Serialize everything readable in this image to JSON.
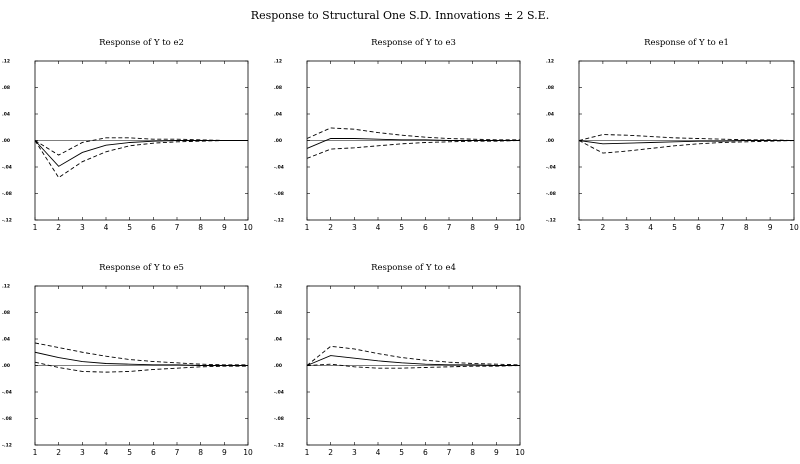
{
  "figure": {
    "title": "Response to Structural One S.D. Innovations ± 2 S.E."
  },
  "chart_data": [
    {
      "type": "line",
      "title": "Response of Y to e2",
      "x": [
        1,
        2,
        3,
        4,
        5,
        6,
        7,
        8,
        9,
        10
      ],
      "ylim": [
        -0.12,
        0.12
      ],
      "yticks": [
        ".12",
        ".08",
        ".04",
        ".00",
        "-.04",
        "-.08",
        "-.12"
      ],
      "yticks_values": [
        0.12,
        0.08,
        0.04,
        0.0,
        -0.04,
        -0.08,
        -0.12
      ],
      "series": [
        {
          "style": "solid",
          "values": [
            0.0,
            -0.039,
            -0.018,
            -0.007,
            -0.003,
            -0.001,
            0.0,
            0.0,
            0.0,
            0.0
          ]
        },
        {
          "style": "dashed",
          "values": [
            0.0,
            -0.056,
            -0.032,
            -0.017,
            -0.008,
            -0.004,
            -0.002,
            -0.001,
            0.0,
            0.0
          ]
        },
        {
          "style": "dashed",
          "values": [
            0.0,
            -0.022,
            -0.003,
            0.004,
            0.004,
            0.002,
            0.002,
            0.001,
            0.0,
            0.0
          ]
        }
      ]
    },
    {
      "type": "line",
      "title": "Response of Y to e3",
      "x": [
        1,
        2,
        3,
        4,
        5,
        6,
        7,
        8,
        9,
        10
      ],
      "ylim": [
        -0.12,
        0.12
      ],
      "yticks": [
        ".12",
        ".08",
        ".04",
        ".00",
        "-.04",
        "-.08",
        "-.12"
      ],
      "yticks_values": [
        0.12,
        0.08,
        0.04,
        0.0,
        -0.04,
        -0.08,
        -0.12
      ],
      "series": [
        {
          "style": "solid",
          "values": [
            -0.012,
            0.003,
            0.003,
            0.002,
            0.001,
            0.001,
            0.0,
            0.0,
            0.0,
            0.0
          ]
        },
        {
          "style": "dashed",
          "values": [
            0.003,
            0.019,
            0.017,
            0.012,
            0.008,
            0.005,
            0.003,
            0.002,
            0.001,
            0.001
          ]
        },
        {
          "style": "dashed",
          "values": [
            -0.027,
            -0.013,
            -0.011,
            -0.008,
            -0.005,
            -0.003,
            -0.002,
            -0.001,
            -0.001,
            0.0
          ]
        }
      ]
    },
    {
      "type": "line",
      "title": "Response of Y to e1",
      "x": [
        1,
        2,
        3,
        4,
        5,
        6,
        7,
        8,
        9,
        10
      ],
      "ylim": [
        -0.12,
        0.12
      ],
      "yticks": [
        ".12",
        ".08",
        ".04",
        ".00",
        "-.04",
        "-.08",
        "-.12"
      ],
      "yticks_values": [
        0.12,
        0.08,
        0.04,
        0.0,
        -0.04,
        -0.08,
        -0.12
      ],
      "series": [
        {
          "style": "solid",
          "values": [
            0.0,
            -0.005,
            -0.004,
            -0.003,
            -0.002,
            -0.001,
            -0.001,
            0.0,
            0.0,
            0.0
          ]
        },
        {
          "style": "dashed",
          "values": [
            0.0,
            0.009,
            0.008,
            0.006,
            0.004,
            0.003,
            0.002,
            0.001,
            0.001,
            0.0
          ]
        },
        {
          "style": "dashed",
          "values": [
            0.0,
            -0.019,
            -0.016,
            -0.012,
            -0.008,
            -0.005,
            -0.003,
            -0.002,
            -0.001,
            0.0
          ]
        }
      ]
    },
    {
      "type": "line",
      "title": "Response of Y to e5",
      "x": [
        1,
        2,
        3,
        4,
        5,
        6,
        7,
        8,
        9,
        10
      ],
      "ylim": [
        -0.12,
        0.12
      ],
      "yticks": [
        ".12",
        ".08",
        ".04",
        ".00",
        "-.04",
        "-.08",
        "-.12"
      ],
      "yticks_values": [
        0.12,
        0.08,
        0.04,
        0.0,
        -0.04,
        -0.08,
        -0.12
      ],
      "series": [
        {
          "style": "solid",
          "values": [
            0.02,
            0.012,
            0.006,
            0.003,
            0.002,
            0.001,
            0.001,
            0.0,
            0.0,
            0.0
          ]
        },
        {
          "style": "dashed",
          "values": [
            0.034,
            0.027,
            0.02,
            0.014,
            0.009,
            0.006,
            0.004,
            0.002,
            0.001,
            0.001
          ]
        },
        {
          "style": "dashed",
          "values": [
            0.005,
            -0.003,
            -0.009,
            -0.01,
            -0.009,
            -0.006,
            -0.004,
            -0.002,
            -0.001,
            -0.001
          ]
        }
      ]
    },
    {
      "type": "line",
      "title": "Response of Y to e4",
      "x": [
        1,
        2,
        3,
        4,
        5,
        6,
        7,
        8,
        9,
        10
      ],
      "ylim": [
        -0.12,
        0.12
      ],
      "yticks": [
        ".12",
        ".08",
        ".04",
        ".00",
        "-.04",
        "-.08",
        "-.12"
      ],
      "yticks_values": [
        0.12,
        0.08,
        0.04,
        0.0,
        -0.04,
        -0.08,
        -0.12
      ],
      "series": [
        {
          "style": "solid",
          "values": [
            0.0,
            0.015,
            0.011,
            0.007,
            0.004,
            0.002,
            0.001,
            0.001,
            0.0,
            0.0
          ]
        },
        {
          "style": "dashed",
          "values": [
            0.0,
            0.029,
            0.025,
            0.018,
            0.012,
            0.008,
            0.005,
            0.003,
            0.002,
            0.001
          ]
        },
        {
          "style": "dashed",
          "values": [
            0.0,
            0.002,
            -0.002,
            -0.004,
            -0.004,
            -0.003,
            -0.002,
            -0.001,
            -0.001,
            0.0
          ]
        }
      ]
    }
  ]
}
